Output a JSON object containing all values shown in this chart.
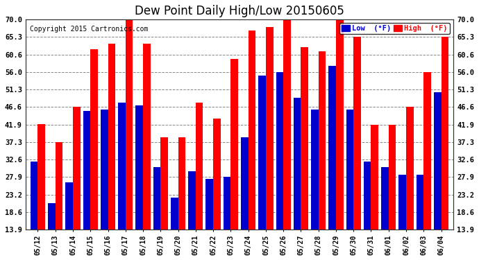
{
  "title": "Dew Point Daily High/Low 20150605",
  "copyright": "Copyright 2015 Cartronics.com",
  "dates": [
    "05/12",
    "05/13",
    "05/14",
    "05/15",
    "05/16",
    "05/17",
    "05/18",
    "05/19",
    "05/20",
    "05/21",
    "05/22",
    "05/23",
    "05/24",
    "05/25",
    "05/26",
    "05/27",
    "05/28",
    "05/29",
    "05/30",
    "05/31",
    "06/01",
    "06/02",
    "06/03",
    "06/04"
  ],
  "high": [
    42.0,
    37.3,
    46.6,
    62.0,
    63.5,
    70.0,
    63.5,
    38.5,
    38.5,
    47.8,
    43.5,
    59.5,
    67.0,
    68.0,
    70.5,
    62.5,
    61.5,
    70.5,
    65.3,
    41.9,
    41.9,
    46.6,
    55.9,
    65.3
  ],
  "low": [
    32.0,
    21.0,
    26.5,
    45.5,
    46.0,
    47.8,
    47.0,
    30.5,
    22.5,
    29.5,
    27.5,
    27.9,
    38.5,
    55.0,
    56.0,
    49.0,
    46.0,
    57.5,
    46.0,
    32.0,
    30.5,
    28.5,
    28.5,
    50.5
  ],
  "yticks": [
    13.9,
    18.6,
    23.2,
    27.9,
    32.6,
    37.3,
    41.9,
    46.6,
    51.3,
    56.0,
    60.6,
    65.3,
    70.0
  ],
  "ymin": 13.9,
  "ymax": 70.0,
  "bar_color_low": "#0000cc",
  "bar_color_high": "#ff0000",
  "bg_color": "#ffffff",
  "plot_bg_color": "#ffffff",
  "grid_color": "#888888",
  "title_fontsize": 12,
  "copyright_fontsize": 7,
  "legend_label_low": "Low  (°F)",
  "legend_label_high": "High  (°F)"
}
